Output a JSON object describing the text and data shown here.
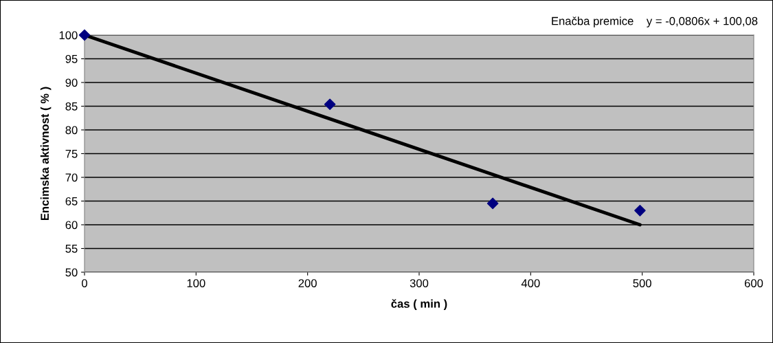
{
  "chart_data": {
    "type": "scatter",
    "xlabel": "čas ( min )",
    "ylabel": "Encimska aktivnost ( % )",
    "annotations": [
      "Enačba premice    y = -0,0806x + 100,08"
    ],
    "series": [
      {
        "color": "#000080",
        "x": [
          0,
          220,
          366,
          498
        ],
        "values": [
          100,
          85.4,
          64.5,
          63
        ],
        "marker": "diamond"
      },
      {
        "type": "line",
        "color": "#000000",
        "x": [
          0,
          498
        ],
        "values": [
          100,
          60
        ],
        "marker": "none",
        "line_style": "solid"
      }
    ],
    "xlim": [
      0,
      600
    ],
    "xticks": [
      0,
      100,
      200,
      300,
      400,
      500,
      600
    ],
    "ylim": [
      50,
      100
    ],
    "yticks": [
      50,
      55,
      60,
      65,
      70,
      75,
      80,
      85,
      90,
      95,
      100
    ],
    "grid": "y",
    "legend": false
  }
}
